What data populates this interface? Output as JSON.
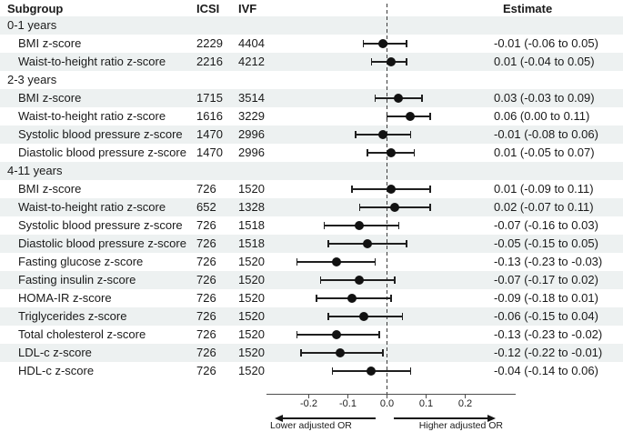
{
  "colors": {
    "row_alt_background": "#edf1f1",
    "marker": "#121212",
    "text": "#1a1a1a",
    "axis": "#4d4d4d"
  },
  "chart_data": {
    "type": "scatter",
    "subtype": "forest-plot",
    "title": "",
    "xlabel": "",
    "legend": "none",
    "grid": false,
    "columns": {
      "subgroup": "Subgroup",
      "icsi": "ICSI",
      "ivf": "IVF",
      "estimate": "Estimate"
    },
    "x_axis": {
      "range": [
        -0.31,
        0.33
      ],
      "ticks": [
        -0.2,
        -0.1,
        0,
        0.1,
        0.2
      ],
      "tick_labels": [
        "-0.2",
        "-0.1",
        "0.0",
        "0.1",
        "0.2"
      ],
      "reference_line": 0
    },
    "direction_labels": {
      "lower": "Lower adjusted OR",
      "higher": "Higher adjusted OR"
    },
    "rows": [
      {
        "type": "group",
        "label": "0-1 years"
      },
      {
        "type": "item",
        "label": "BMI z-score",
        "icsi": "2229",
        "ivf": "4404",
        "est": -0.01,
        "lo": -0.06,
        "hi": 0.05,
        "estimate_text": "-0.01 (-0.06 to 0.05)"
      },
      {
        "type": "item",
        "label": "Waist-to-height ratio z-score",
        "icsi": "2216",
        "ivf": "4212",
        "est": 0.01,
        "lo": -0.04,
        "hi": 0.05,
        "estimate_text": "0.01 (-0.04 to 0.05)"
      },
      {
        "type": "group",
        "label": "2-3 years"
      },
      {
        "type": "item",
        "label": "BMI z-score",
        "icsi": "1715",
        "ivf": "3514",
        "est": 0.03,
        "lo": -0.03,
        "hi": 0.09,
        "estimate_text": "0.03 (-0.03 to 0.09)"
      },
      {
        "type": "item",
        "label": "Waist-to-height ratio z-score",
        "icsi": "1616",
        "ivf": "3229",
        "est": 0.06,
        "lo": 0.0,
        "hi": 0.11,
        "estimate_text": "0.06 (0.00 to 0.11)"
      },
      {
        "type": "item",
        "label": "Systolic blood pressure z-score",
        "icsi": "1470",
        "ivf": "2996",
        "est": -0.01,
        "lo": -0.08,
        "hi": 0.06,
        "estimate_text": "-0.01 (-0.08 to 0.06)"
      },
      {
        "type": "item",
        "label": "Diastolic blood pressure z-score",
        "icsi": "1470",
        "ivf": "2996",
        "est": 0.01,
        "lo": -0.05,
        "hi": 0.07,
        "estimate_text": "0.01 (-0.05 to 0.07)"
      },
      {
        "type": "group",
        "label": "4-11 years"
      },
      {
        "type": "item",
        "label": "BMI z-score",
        "icsi": "726",
        "ivf": "1520",
        "est": 0.01,
        "lo": -0.09,
        "hi": 0.11,
        "estimate_text": "0.01 (-0.09 to 0.11)"
      },
      {
        "type": "item",
        "label": "Waist-to-height ratio z-score",
        "icsi": "652",
        "ivf": "1328",
        "est": 0.02,
        "lo": -0.07,
        "hi": 0.11,
        "estimate_text": "0.02 (-0.07 to 0.11)"
      },
      {
        "type": "item",
        "label": "Systolic blood pressure z-score",
        "icsi": "726",
        "ivf": "1518",
        "est": -0.07,
        "lo": -0.16,
        "hi": 0.03,
        "estimate_text": "-0.07 (-0.16 to 0.03)"
      },
      {
        "type": "item",
        "label": "Diastolic blood pressure z-score",
        "icsi": "726",
        "ivf": "1518",
        "est": -0.05,
        "lo": -0.15,
        "hi": 0.05,
        "estimate_text": "-0.05 (-0.15 to 0.05)"
      },
      {
        "type": "item",
        "label": "Fasting glucose z-score",
        "icsi": "726",
        "ivf": "1520",
        "est": -0.13,
        "lo": -0.23,
        "hi": -0.03,
        "estimate_text": "-0.13 (-0.23 to -0.03)"
      },
      {
        "type": "item",
        "label": "Fasting insulin z-score",
        "icsi": "726",
        "ivf": "1520",
        "est": -0.07,
        "lo": -0.17,
        "hi": 0.02,
        "estimate_text": "-0.07 (-0.17 to 0.02)"
      },
      {
        "type": "item",
        "label": "HOMA-IR z-score",
        "icsi": "726",
        "ivf": "1520",
        "est": -0.09,
        "lo": -0.18,
        "hi": 0.01,
        "estimate_text": "-0.09 (-0.18 to 0.01)"
      },
      {
        "type": "item",
        "label": "Triglycerides z-score",
        "icsi": "726",
        "ivf": "1520",
        "est": -0.06,
        "lo": -0.15,
        "hi": 0.04,
        "estimate_text": "-0.06 (-0.15 to 0.04)"
      },
      {
        "type": "item",
        "label": "Total cholesterol z-score",
        "icsi": "726",
        "ivf": "1520",
        "est": -0.13,
        "lo": -0.23,
        "hi": -0.02,
        "estimate_text": "-0.13 (-0.23 to -0.02)"
      },
      {
        "type": "item",
        "label": "LDL-c z-score",
        "icsi": "726",
        "ivf": "1520",
        "est": -0.12,
        "lo": -0.22,
        "hi": -0.01,
        "estimate_text": "-0.12 (-0.22 to -0.01)"
      },
      {
        "type": "item",
        "label": "HDL-c z-score",
        "icsi": "726",
        "ivf": "1520",
        "est": -0.04,
        "lo": -0.14,
        "hi": 0.06,
        "estimate_text": "-0.04 (-0.14 to 0.06)"
      }
    ]
  }
}
